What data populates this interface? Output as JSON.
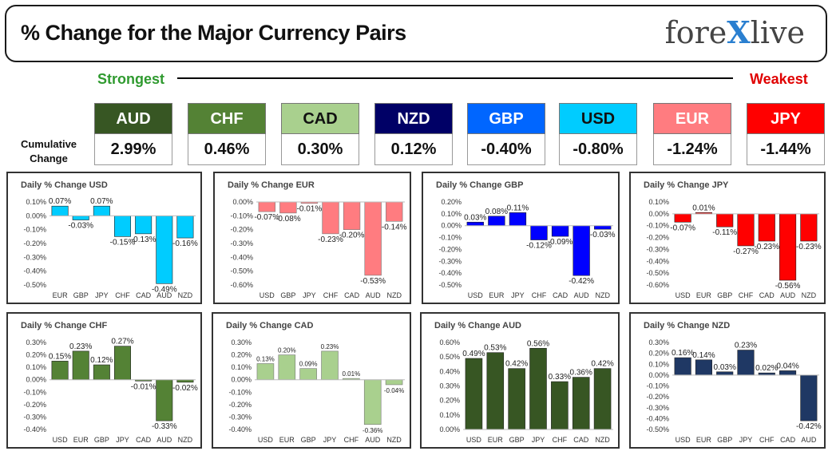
{
  "header": {
    "title": "% Change for the Major Currency Pairs",
    "logo_left": "fore",
    "logo_x": "X",
    "logo_right": "live"
  },
  "ranking": {
    "strongest_label": "Strongest",
    "weakest_label": "Weakest",
    "cumulative_label_line1": "Cumulative",
    "cumulative_label_line2": "Change",
    "tiles": [
      {
        "code": "AUD",
        "value": "2.99%",
        "color": "#375623",
        "text_color": "#ffffff"
      },
      {
        "code": "CHF",
        "value": "0.46%",
        "color": "#548235",
        "text_color": "#ffffff"
      },
      {
        "code": "CAD",
        "value": "0.30%",
        "color": "#a9d08e",
        "text_color": "#111111"
      },
      {
        "code": "NZD",
        "value": "0.12%",
        "color": "#000066",
        "text_color": "#ffffff"
      },
      {
        "code": "GBP",
        "value": "-0.40%",
        "color": "#0066ff",
        "text_color": "#ffffff"
      },
      {
        "code": "USD",
        "value": "-0.80%",
        "color": "#00ccff",
        "text_color": "#111111"
      },
      {
        "code": "EUR",
        "value": "-1.24%",
        "color": "#ff7c80",
        "text_color": "#ffffff"
      },
      {
        "code": "JPY",
        "value": "-1.44%",
        "color": "#ff0000",
        "text_color": "#ffffff"
      }
    ]
  },
  "chart_data": [
    {
      "type": "bar",
      "currency": "USD",
      "title": "Daily % Change USD",
      "color": "#00ccff",
      "categories": [
        "EUR",
        "GBP",
        "JPY",
        "CHF",
        "CAD",
        "AUD",
        "NZD"
      ],
      "values": [
        0.07,
        -0.03,
        0.07,
        -0.15,
        -0.13,
        -0.49,
        -0.16
      ],
      "labels": [
        "0.07%",
        "-0.03%",
        "0.07%",
        "-0.15%",
        "-0.13%",
        "-0.49%",
        "-0.16%"
      ],
      "ylim": [
        -0.5,
        0.1
      ],
      "yticks": [
        0.1,
        0.0,
        -0.1,
        -0.2,
        -0.3,
        -0.4,
        -0.5
      ],
      "ytick_labels": [
        "0.10%",
        "0.00%",
        "-0.10%",
        "-0.20%",
        "-0.30%",
        "-0.40%",
        "-0.50%"
      ]
    },
    {
      "type": "bar",
      "currency": "EUR",
      "title": "Daily % Change EUR",
      "color": "#ff7c80",
      "categories": [
        "USD",
        "GBP",
        "JPY",
        "CHF",
        "CAD",
        "AUD",
        "NZD"
      ],
      "values": [
        -0.07,
        -0.08,
        -0.01,
        -0.23,
        -0.2,
        -0.53,
        -0.14
      ],
      "labels": [
        "-0.07%",
        "-0.08%",
        "-0.01%",
        "-0.23%",
        "-0.20%",
        "-0.53%",
        "-0.14%"
      ],
      "ylim": [
        -0.6,
        0.0
      ],
      "yticks": [
        0.0,
        -0.1,
        -0.2,
        -0.3,
        -0.4,
        -0.5,
        -0.6
      ],
      "ytick_labels": [
        "0.00%",
        "-0.10%",
        "-0.20%",
        "-0.30%",
        "-0.40%",
        "-0.50%",
        "-0.60%"
      ]
    },
    {
      "type": "bar",
      "currency": "GBP",
      "title": "Daily % Change GBP",
      "color": "#0000ff",
      "categories": [
        "USD",
        "EUR",
        "JPY",
        "CHF",
        "CAD",
        "AUD",
        "NZD"
      ],
      "values": [
        0.03,
        0.08,
        0.11,
        -0.12,
        -0.09,
        -0.42,
        -0.03
      ],
      "labels": [
        "0.03%",
        "0.08%",
        "0.11%",
        "-0.12%",
        "-0.09%",
        "-0.42%",
        "-0.03%"
      ],
      "ylim": [
        -0.5,
        0.2
      ],
      "yticks": [
        0.2,
        0.15,
        0.1,
        0.05,
        0.0,
        -0.05,
        -0.1,
        -0.15,
        -0.2,
        -0.25,
        -0.3,
        -0.35,
        -0.4,
        -0.45,
        -0.5
      ],
      "ytick_labels": [
        "0.20%",
        "",
        "0.10%",
        "",
        "0.00%",
        "",
        "-0.10%",
        "",
        "-0.20%",
        "",
        "-0.30%",
        "",
        "-0.40%",
        "",
        "-0.50%"
      ]
    },
    {
      "type": "bar",
      "currency": "JPY",
      "title": "Daily % Change JPY",
      "color": "#ff0000",
      "categories": [
        "USD",
        "EUR",
        "GBP",
        "CHF",
        "CAD",
        "AUD",
        "NZD"
      ],
      "values": [
        -0.07,
        0.01,
        -0.11,
        -0.27,
        -0.23,
        -0.56,
        -0.23
      ],
      "labels": [
        "-0.07%",
        "0.01%",
        "-0.11%",
        "-0.27%",
        "-0.23%",
        "-0.56%",
        "-0.23%"
      ],
      "ylim": [
        -0.6,
        0.1
      ],
      "yticks": [
        0.1,
        0.0,
        -0.1,
        -0.2,
        -0.3,
        -0.4,
        -0.5,
        -0.6
      ],
      "ytick_labels": [
        "0.10%",
        "0.00%",
        "-0.10%",
        "-0.20%",
        "-0.30%",
        "-0.40%",
        "-0.50%",
        "-0.60%"
      ]
    },
    {
      "type": "bar",
      "currency": "CHF",
      "title": "Daily % Change CHF",
      "color": "#548235",
      "categories": [
        "USD",
        "EUR",
        "GBP",
        "JPY",
        "CAD",
        "AUD",
        "NZD"
      ],
      "values": [
        0.15,
        0.23,
        0.12,
        0.27,
        -0.01,
        -0.33,
        -0.02
      ],
      "labels": [
        "0.15%",
        "0.23%",
        "0.12%",
        "0.27%",
        "-0.01%",
        "-0.33%",
        "-0.02%"
      ],
      "ylim": [
        -0.4,
        0.3
      ],
      "yticks": [
        0.3,
        0.2,
        0.1,
        0.0,
        -0.1,
        -0.2,
        -0.3,
        -0.4
      ],
      "ytick_labels": [
        "0.30%",
        "0.20%",
        "0.10%",
        "0.00%",
        "-0.10%",
        "-0.20%",
        "-0.30%",
        "-0.40%"
      ]
    },
    {
      "type": "bar",
      "currency": "CAD",
      "title": "Daily % Change CAD",
      "color": "#a9d08e",
      "categories": [
        "USD",
        "EUR",
        "GBP",
        "JPY",
        "CHF",
        "AUD",
        "NZD"
      ],
      "values": [
        0.13,
        0.2,
        0.09,
        0.23,
        0.01,
        -0.36,
        -0.04
      ],
      "labels": [
        "0.13%",
        "0.20%",
        "0.09%",
        "0.23%",
        "0.01%",
        "-0.36%",
        "-0.04%"
      ],
      "ylim": [
        -0.4,
        0.3
      ],
      "yticks": [
        0.3,
        0.2,
        0.1,
        0.0,
        -0.1,
        -0.2,
        -0.3,
        -0.4
      ],
      "ytick_labels": [
        "0.30%",
        "0.20%",
        "0.10%",
        "0.00%",
        "-0.10%",
        "-0.20%",
        "-0.30%",
        "-0.40%"
      ]
    },
    {
      "type": "bar",
      "currency": "AUD",
      "title": "Daily % Change AUD",
      "color": "#375623",
      "categories": [
        "USD",
        "EUR",
        "GBP",
        "JPY",
        "CHF",
        "CAD",
        "NZD"
      ],
      "values": [
        0.49,
        0.53,
        0.42,
        0.56,
        0.33,
        0.36,
        0.42
      ],
      "labels": [
        "0.49%",
        "0.53%",
        "0.42%",
        "0.56%",
        "0.33%",
        "0.36%",
        "0.42%"
      ],
      "ylim": [
        0.0,
        0.6
      ],
      "yticks": [
        0.6,
        0.5,
        0.4,
        0.3,
        0.2,
        0.1,
        0.0
      ],
      "ytick_labels": [
        "0.60%",
        "0.50%",
        "0.40%",
        "0.30%",
        "0.20%",
        "0.10%",
        "0.00%"
      ]
    },
    {
      "type": "bar",
      "currency": "NZD",
      "title": "Daily % Change NZD",
      "color": "#1f3864",
      "categories": [
        "USD",
        "EUR",
        "GBP",
        "JPY",
        "CHF",
        "CAD",
        "AUD"
      ],
      "values": [
        0.16,
        0.14,
        0.03,
        0.23,
        0.02,
        0.04,
        -0.42
      ],
      "labels": [
        "0.16%",
        "0.14%",
        "0.03%",
        "0.23%",
        "0.02%",
        "0.04%",
        "-0.42%"
      ],
      "ylim": [
        -0.5,
        0.3
      ],
      "yticks": [
        0.3,
        0.2,
        0.1,
        0.0,
        -0.1,
        -0.2,
        -0.3,
        -0.4,
        -0.5
      ],
      "ytick_labels": [
        "0.30%",
        "0.20%",
        "0.10%",
        "0.00%",
        "-0.10%",
        "-0.20%",
        "-0.30%",
        "-0.40%",
        "-0.50%"
      ]
    }
  ]
}
